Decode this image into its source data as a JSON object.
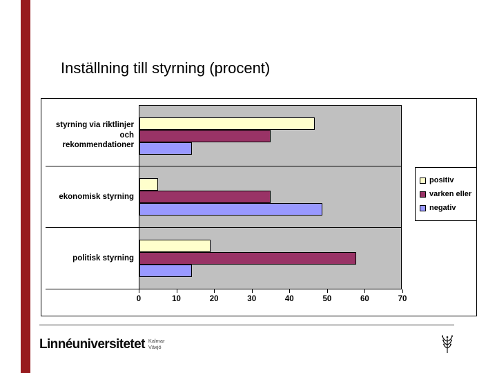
{
  "slide": {
    "title": "Inställning till styrning (procent)",
    "accent_bar_color": "#971B1E"
  },
  "chart_data": {
    "type": "bar",
    "orientation": "horizontal",
    "title": "",
    "xlabel": "",
    "ylabel": "",
    "categories": [
      "styrning via riktlinjer\noch\nrekommendationer",
      "ekonomisk styrning",
      "politisk styrning"
    ],
    "series": [
      {
        "name": "positiv",
        "color": "#FFFFCC",
        "values": [
          47,
          5,
          19
        ]
      },
      {
        "name": "varken eller",
        "color": "#993366",
        "values": [
          35,
          35,
          58
        ]
      },
      {
        "name": "negativ",
        "color": "#9999FF",
        "values": [
          14,
          49,
          14
        ]
      }
    ],
    "xlim": [
      0,
      70
    ],
    "xticks": [
      0,
      10,
      20,
      30,
      40,
      50,
      60,
      70
    ],
    "plot_bg": "#C0C0C0",
    "grid": false,
    "legend_position": "right"
  },
  "footer": {
    "wordmark": "Linnéuniversitetet",
    "sub_lines": [
      "Kalmar",
      "Växjö"
    ]
  }
}
